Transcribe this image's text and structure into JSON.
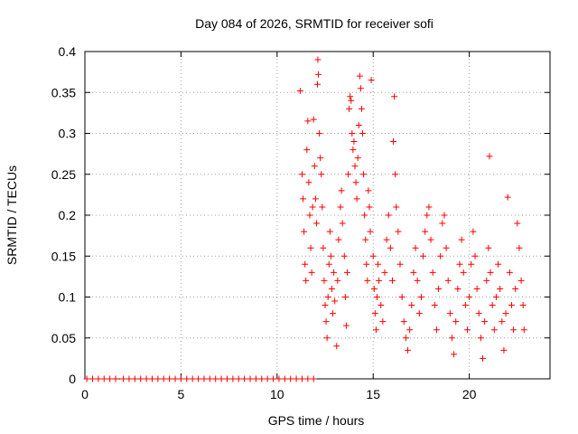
{
  "chart_data": {
    "type": "scatter",
    "title": "Day 084 of 2026, SRMTID for receiver sofi",
    "xlabel": "GPS time / hours",
    "ylabel": "SRMTID / TECUs",
    "xlim": [
      0,
      24.2
    ],
    "ylim": [
      0,
      0.4
    ],
    "x_ticks": [
      0,
      5,
      10,
      15,
      20
    ],
    "x_tick_labels": [
      "0",
      "5",
      "10",
      "15",
      "20"
    ],
    "y_ticks": [
      0,
      0.05,
      0.1,
      0.15,
      0.2,
      0.25,
      0.3,
      0.35,
      0.4
    ],
    "y_tick_labels": [
      "0",
      "0.05",
      "0.1",
      "0.15",
      "0.2",
      "0.25",
      "0.3",
      "0.35",
      "0.4"
    ],
    "grid": true,
    "marker": "+",
    "color": "#ff0000",
    "series": [
      {
        "name": "SRMTID",
        "points": [
          [
            0.1,
            0
          ],
          [
            0.4,
            0
          ],
          [
            0.7,
            0
          ],
          [
            1.0,
            0
          ],
          [
            1.3,
            0
          ],
          [
            1.6,
            0
          ],
          [
            2.0,
            0
          ],
          [
            2.3,
            0
          ],
          [
            2.6,
            0
          ],
          [
            2.9,
            0
          ],
          [
            3.2,
            0
          ],
          [
            3.5,
            0
          ],
          [
            3.8,
            0
          ],
          [
            4.1,
            0
          ],
          [
            4.4,
            0
          ],
          [
            4.7,
            0
          ],
          [
            5.0,
            0
          ],
          [
            5.3,
            0
          ],
          [
            5.6,
            0
          ],
          [
            5.9,
            0
          ],
          [
            6.2,
            0
          ],
          [
            6.5,
            0
          ],
          [
            6.8,
            0
          ],
          [
            7.1,
            0
          ],
          [
            7.4,
            0
          ],
          [
            7.7,
            0
          ],
          [
            8.0,
            0
          ],
          [
            8.3,
            0
          ],
          [
            8.6,
            0
          ],
          [
            8.9,
            0
          ],
          [
            9.2,
            0
          ],
          [
            9.5,
            0
          ],
          [
            9.8,
            0
          ],
          [
            10.1,
            0
          ],
          [
            10.4,
            0
          ],
          [
            10.7,
            0
          ],
          [
            11.0,
            0
          ],
          [
            11.3,
            0
          ],
          [
            11.6,
            0
          ],
          [
            11.9,
            0
          ],
          [
            11.2,
            0.352
          ],
          [
            11.3,
            0.25
          ],
          [
            11.35,
            0.22
          ],
          [
            11.4,
            0.18
          ],
          [
            11.45,
            0.14
          ],
          [
            11.5,
            0.12
          ],
          [
            11.55,
            0.28
          ],
          [
            11.6,
            0.315
          ],
          [
            11.65,
            0.24
          ],
          [
            11.7,
            0.2
          ],
          [
            11.75,
            0.16
          ],
          [
            11.8,
            0.13
          ],
          [
            11.85,
            0.21
          ],
          [
            11.9,
            0.317
          ],
          [
            11.95,
            0.26
          ],
          [
            12.0,
            0.22
          ],
          [
            12.05,
            0.19
          ],
          [
            12.1,
            0.36
          ],
          [
            12.12,
            0.39
          ],
          [
            12.15,
            0.372
          ],
          [
            12.2,
            0.3
          ],
          [
            12.25,
            0.27
          ],
          [
            12.3,
            0.25
          ],
          [
            12.35,
            0.21
          ],
          [
            12.4,
            0.16
          ],
          [
            12.45,
            0.12
          ],
          [
            12.5,
            0.09
          ],
          [
            12.55,
            0.07
          ],
          [
            12.6,
            0.05
          ],
          [
            12.65,
            0.1
          ],
          [
            12.7,
            0.14
          ],
          [
            12.75,
            0.18
          ],
          [
            12.8,
            0.15
          ],
          [
            12.85,
            0.11
          ],
          [
            12.9,
            0.08
          ],
          [
            12.95,
            0.13
          ],
          [
            13.0,
            0.095
          ],
          [
            13.1,
            0.04
          ],
          [
            13.15,
            0.12
          ],
          [
            13.2,
            0.17
          ],
          [
            13.3,
            0.21
          ],
          [
            13.35,
            0.23
          ],
          [
            13.4,
            0.19
          ],
          [
            13.5,
            0.15
          ],
          [
            13.55,
            0.1
          ],
          [
            13.6,
            0.065
          ],
          [
            13.65,
            0.13
          ],
          [
            13.7,
            0.25
          ],
          [
            13.75,
            0.33
          ],
          [
            13.8,
            0.345
          ],
          [
            13.85,
            0.34
          ],
          [
            13.9,
            0.3
          ],
          [
            13.95,
            0.28
          ],
          [
            14.0,
            0.29
          ],
          [
            14.05,
            0.26
          ],
          [
            14.1,
            0.24
          ],
          [
            14.15,
            0.22
          ],
          [
            14.2,
            0.27
          ],
          [
            14.25,
            0.31
          ],
          [
            14.3,
            0.37
          ],
          [
            14.35,
            0.355
          ],
          [
            14.4,
            0.33
          ],
          [
            14.45,
            0.3
          ],
          [
            14.5,
            0.25
          ],
          [
            14.55,
            0.2
          ],
          [
            14.6,
            0.17
          ],
          [
            14.65,
            0.14
          ],
          [
            14.7,
            0.12
          ],
          [
            14.75,
            0.23
          ],
          [
            14.8,
            0.21
          ],
          [
            14.85,
            0.18
          ],
          [
            14.9,
            0.365
          ],
          [
            15.0,
            0.15
          ],
          [
            15.05,
            0.11
          ],
          [
            15.1,
            0.08
          ],
          [
            15.15,
            0.06
          ],
          [
            15.2,
            0.1
          ],
          [
            15.25,
            0.14
          ],
          [
            15.3,
            0.12
          ],
          [
            15.4,
            0.09
          ],
          [
            15.5,
            0.07
          ],
          [
            15.6,
            0.13
          ],
          [
            15.7,
            0.17
          ],
          [
            15.8,
            0.2
          ],
          [
            15.9,
            0.16
          ],
          [
            16.0,
            0.12
          ],
          [
            16.05,
            0.29
          ],
          [
            16.1,
            0.345
          ],
          [
            16.15,
            0.25
          ],
          [
            16.2,
            0.21
          ],
          [
            16.3,
            0.18
          ],
          [
            16.4,
            0.14
          ],
          [
            16.5,
            0.1
          ],
          [
            16.6,
            0.07
          ],
          [
            16.7,
            0.05
          ],
          [
            16.8,
            0.035
          ],
          [
            16.9,
            0.06
          ],
          [
            17.0,
            0.09
          ],
          [
            17.1,
            0.13
          ],
          [
            17.2,
            0.16
          ],
          [
            17.3,
            0.12
          ],
          [
            17.4,
            0.08
          ],
          [
            17.5,
            0.1
          ],
          [
            17.6,
            0.15
          ],
          [
            17.7,
            0.18
          ],
          [
            17.8,
            0.2
          ],
          [
            17.9,
            0.21
          ],
          [
            18.0,
            0.17
          ],
          [
            18.1,
            0.13
          ],
          [
            18.2,
            0.09
          ],
          [
            18.3,
            0.06
          ],
          [
            18.4,
            0.11
          ],
          [
            18.5,
            0.15
          ],
          [
            18.6,
            0.19
          ],
          [
            18.7,
            0.2
          ],
          [
            18.8,
            0.16
          ],
          [
            18.9,
            0.12
          ],
          [
            19.0,
            0.08
          ],
          [
            19.1,
            0.05
          ],
          [
            19.2,
            0.03
          ],
          [
            19.3,
            0.07
          ],
          [
            19.4,
            0.11
          ],
          [
            19.5,
            0.14
          ],
          [
            19.6,
            0.17
          ],
          [
            19.7,
            0.13
          ],
          [
            19.8,
            0.09
          ],
          [
            19.9,
            0.06
          ],
          [
            20.0,
            0.1
          ],
          [
            20.1,
            0.14
          ],
          [
            20.2,
            0.18
          ],
          [
            20.3,
            0.15
          ],
          [
            20.4,
            0.11
          ],
          [
            20.5,
            0.08
          ],
          [
            20.6,
            0.05
          ],
          [
            20.7,
            0.025
          ],
          [
            20.8,
            0.07
          ],
          [
            20.9,
            0.12
          ],
          [
            21.0,
            0.16
          ],
          [
            21.05,
            0.272
          ],
          [
            21.1,
            0.13
          ],
          [
            21.2,
            0.09
          ],
          [
            21.3,
            0.06
          ],
          [
            21.4,
            0.1
          ],
          [
            21.5,
            0.14
          ],
          [
            21.6,
            0.11
          ],
          [
            21.7,
            0.07
          ],
          [
            21.8,
            0.035
          ],
          [
            21.9,
            0.08
          ],
          [
            22.0,
            0.222
          ],
          [
            22.1,
            0.13
          ],
          [
            22.2,
            0.09
          ],
          [
            22.3,
            0.06
          ],
          [
            22.4,
            0.11
          ],
          [
            22.5,
            0.19
          ],
          [
            22.6,
            0.16
          ],
          [
            22.7,
            0.12
          ],
          [
            22.8,
            0.09
          ],
          [
            22.85,
            0.06
          ]
        ]
      }
    ]
  }
}
